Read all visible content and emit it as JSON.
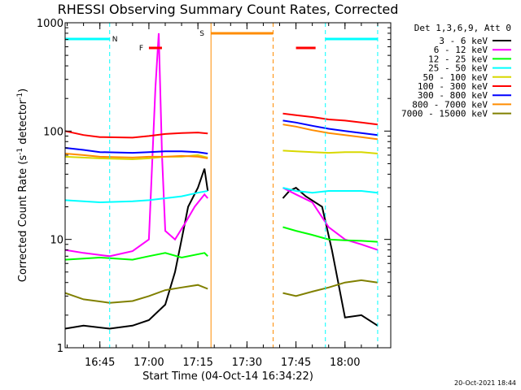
{
  "chart_data": {
    "type": "line",
    "title": "RHESSI Observing Summary Count Rates, Corrected",
    "xlabel": "Start Time (04-Oct-14 16:34:22)",
    "ylabel": "Corrected Count Rate (s⁻¹ detector⁻¹)",
    "ylabel_main": "Corrected Count Rate (s",
    "ylabel_sup1": "-1",
    "ylabel_mid": " detector",
    "ylabel_sup2": "-1",
    "ylabel_end": ")",
    "yscale": "log",
    "ylim": [
      1,
      1000
    ],
    "xlim": [
      "16:34:22",
      "18:14:00"
    ],
    "yticks": [
      {
        "value": 1,
        "label": "1"
      },
      {
        "value": 10,
        "label": "10"
      },
      {
        "value": 100,
        "label": "100"
      },
      {
        "value": 1000,
        "label": "1000"
      }
    ],
    "xticks": [
      {
        "time": "16:45",
        "label": "16:45"
      },
      {
        "time": "17:00",
        "label": "17:00"
      },
      {
        "time": "17:15",
        "label": "17:15"
      },
      {
        "time": "17:30",
        "label": "17:30"
      },
      {
        "time": "17:45",
        "label": "17:45"
      },
      {
        "time": "18:00",
        "label": "18:00"
      }
    ],
    "legend": {
      "position": "right",
      "header": "Det 1,3,6,9, Att 0",
      "entries": [
        {
          "label": "3 - 6 keV",
          "color": "#000000"
        },
        {
          "label": "6 - 12 keV",
          "color": "#ff00ff"
        },
        {
          "label": "12 - 25 keV",
          "color": "#00ff00"
        },
        {
          "label": "25 - 50 keV",
          "color": "#00ffff"
        },
        {
          "label": "50 - 100 keV",
          "color": "#d8d800"
        },
        {
          "label": "100 - 300 keV",
          "color": "#ff0000"
        },
        {
          "label": "300 - 800 keV",
          "color": "#0000ff"
        },
        {
          "label": "800 - 7000 keV",
          "color": "#ff8c00"
        },
        {
          "label": "7000 - 15000 keV",
          "color": "#808000"
        }
      ]
    },
    "series": [
      {
        "name": "3 - 6 keV",
        "color": "#000000",
        "segments": [
          [
            [
              "16:34:22",
              1.5
            ],
            [
              "16:40",
              1.6
            ],
            [
              "16:48",
              1.5
            ],
            [
              "16:55",
              1.6
            ],
            [
              "17:00",
              1.8
            ],
            [
              "17:05",
              2.5
            ],
            [
              "17:08",
              5
            ],
            [
              "17:10",
              10
            ],
            [
              "17:12",
              20
            ],
            [
              "17:15",
              30
            ],
            [
              "17:17",
              45
            ],
            [
              "17:18",
              28
            ]
          ],
          [
            [
              "17:41",
              24
            ],
            [
              "17:43",
              28
            ],
            [
              "17:45",
              30
            ],
            [
              "17:48",
              25
            ],
            [
              "17:53",
              20
            ],
            [
              "17:56",
              8
            ],
            [
              "18:00",
              1.9
            ],
            [
              "18:05",
              2.0
            ],
            [
              "18:10",
              1.6
            ]
          ]
        ]
      },
      {
        "name": "6 - 12 keV",
        "color": "#ff00ff",
        "segments": [
          [
            [
              "16:34:22",
              8
            ],
            [
              "16:40",
              7.5
            ],
            [
              "16:48",
              7
            ],
            [
              "16:55",
              7.8
            ],
            [
              "17:00",
              10
            ],
            [
              "17:02",
              250
            ],
            [
              "17:03",
              800
            ],
            [
              "17:04",
              60
            ],
            [
              "17:05",
              12
            ],
            [
              "17:08",
              10
            ],
            [
              "17:11",
              14
            ],
            [
              "17:14",
              20
            ],
            [
              "17:17",
              26
            ],
            [
              "17:18",
              24
            ]
          ],
          [
            [
              "17:41",
              30
            ],
            [
              "17:45",
              26
            ],
            [
              "17:50",
              22
            ],
            [
              "17:55",
              13
            ],
            [
              "18:00",
              10
            ],
            [
              "18:05",
              9
            ],
            [
              "18:10",
              8
            ]
          ]
        ]
      },
      {
        "name": "12 - 25 keV",
        "color": "#00ff00",
        "segments": [
          [
            [
              "16:34:22",
              6.5
            ],
            [
              "16:45",
              6.8
            ],
            [
              "16:55",
              6.5
            ],
            [
              "17:00",
              7
            ],
            [
              "17:05",
              7.5
            ],
            [
              "17:10",
              6.8
            ],
            [
              "17:17",
              7.5
            ],
            [
              "17:18",
              7
            ]
          ],
          [
            [
              "17:41",
              13
            ],
            [
              "17:45",
              12
            ],
            [
              "17:50",
              11
            ],
            [
              "17:55",
              10
            ],
            [
              "18:00",
              9.8
            ],
            [
              "18:05",
              9.7
            ],
            [
              "18:10",
              9.5
            ]
          ]
        ]
      },
      {
        "name": "25 - 50 keV",
        "color": "#00ffff",
        "segments": [
          [
            [
              "16:34:22",
              23
            ],
            [
              "16:45",
              22
            ],
            [
              "16:55",
              22.5
            ],
            [
              "17:00",
              23
            ],
            [
              "17:05",
              24
            ],
            [
              "17:10",
              25
            ],
            [
              "17:15",
              27
            ],
            [
              "17:18",
              28
            ]
          ],
          [
            [
              "17:41",
              30
            ],
            [
              "17:45",
              28
            ],
            [
              "17:50",
              27
            ],
            [
              "17:55",
              28
            ],
            [
              "18:00",
              28
            ],
            [
              "18:05",
              28
            ],
            [
              "18:10",
              27
            ]
          ]
        ]
      },
      {
        "name": "50 - 100 keV",
        "color": "#d8d800",
        "segments": [
          [
            [
              "16:34:22",
              58
            ],
            [
              "16:45",
              56
            ],
            [
              "16:55",
              55
            ],
            [
              "17:00",
              56
            ],
            [
              "17:05",
              58
            ],
            [
              "17:10",
              58
            ],
            [
              "17:15",
              60
            ],
            [
              "17:18",
              57
            ]
          ],
          [
            [
              "17:41",
              66
            ],
            [
              "17:45",
              65
            ],
            [
              "17:50",
              64
            ],
            [
              "17:55",
              63
            ],
            [
              "18:00",
              64
            ],
            [
              "18:05",
              64
            ],
            [
              "18:10",
              62
            ]
          ]
        ]
      },
      {
        "name": "100 - 300 keV",
        "color": "#ff0000",
        "segments": [
          [
            [
              "16:34:22",
              100
            ],
            [
              "16:40",
              92
            ],
            [
              "16:45",
              88
            ],
            [
              "16:55",
              87
            ],
            [
              "17:00",
              90
            ],
            [
              "17:05",
              94
            ],
            [
              "17:10",
              96
            ],
            [
              "17:15",
              97
            ],
            [
              "17:18",
              95
            ]
          ],
          [
            [
              "17:41",
              145
            ],
            [
              "17:45",
              140
            ],
            [
              "17:50",
              135
            ],
            [
              "17:55",
              128
            ],
            [
              "18:00",
              125
            ],
            [
              "18:05",
              120
            ],
            [
              "18:10",
              115
            ]
          ]
        ]
      },
      {
        "name": "300 - 800 keV",
        "color": "#0000ff",
        "segments": [
          [
            [
              "16:34:22",
              70
            ],
            [
              "16:40",
              67
            ],
            [
              "16:45",
              64
            ],
            [
              "16:55",
              63
            ],
            [
              "17:00",
              64
            ],
            [
              "17:05",
              65
            ],
            [
              "17:10",
              65
            ],
            [
              "17:15",
              64
            ],
            [
              "17:18",
              62
            ]
          ],
          [
            [
              "17:41",
              125
            ],
            [
              "17:45",
              120
            ],
            [
              "17:50",
              112
            ],
            [
              "17:55",
              105
            ],
            [
              "18:00",
              100
            ],
            [
              "18:05",
              96
            ],
            [
              "18:10",
              92
            ]
          ]
        ]
      },
      {
        "name": "800 - 7000 keV",
        "color": "#ff8c00",
        "segments": [
          [
            [
              "16:34:22",
              62
            ],
            [
              "16:40",
              60
            ],
            [
              "16:45",
              58
            ],
            [
              "16:55",
              57
            ],
            [
              "17:00",
              58
            ],
            [
              "17:05",
              58
            ],
            [
              "17:10",
              59
            ],
            [
              "17:15",
              58
            ],
            [
              "17:18",
              56
            ]
          ],
          [
            [
              "17:41",
              115
            ],
            [
              "17:45",
              110
            ],
            [
              "17:50",
              102
            ],
            [
              "17:55",
              96
            ],
            [
              "18:00",
              92
            ],
            [
              "18:05",
              88
            ],
            [
              "18:10",
              84
            ]
          ]
        ]
      },
      {
        "name": "7000 - 15000 keV",
        "color": "#808000",
        "segments": [
          [
            [
              "16:34:22",
              3.2
            ],
            [
              "16:40",
              2.8
            ],
            [
              "16:48",
              2.6
            ],
            [
              "16:55",
              2.7
            ],
            [
              "17:00",
              3.0
            ],
            [
              "17:05",
              3.4
            ],
            [
              "17:10",
              3.6
            ],
            [
              "17:15",
              3.8
            ],
            [
              "17:18",
              3.5
            ]
          ],
          [
            [
              "17:41",
              3.2
            ],
            [
              "17:45",
              3.0
            ],
            [
              "17:50",
              3.3
            ],
            [
              "17:55",
              3.6
            ],
            [
              "18:00",
              4.0
            ],
            [
              "18:05",
              4.2
            ],
            [
              "18:10",
              4.0
            ]
          ]
        ]
      }
    ],
    "annotations": {
      "night_color": "#00ffff",
      "flare_color": "#ff0000",
      "saa_color": "#ff8c00",
      "night_label": "N",
      "flare_label": "F",
      "saa_label": "S",
      "night_bars": [
        [
          "16:34:22",
          "16:48"
        ],
        [
          "17:54",
          "18:10"
        ]
      ],
      "night_lines": [
        "16:48",
        "17:54",
        "18:10"
      ],
      "flare_bars": [
        [
          "17:00",
          "17:04"
        ],
        [
          "17:45",
          "17:51"
        ]
      ],
      "saa_bar": [
        "17:19",
        "17:38"
      ],
      "saa_lines_solid": [
        "17:19"
      ],
      "saa_lines_dashed": [
        "17:38"
      ]
    },
    "grid": false
  },
  "footer": {
    "date": "20-Oct-2021 18:44"
  }
}
